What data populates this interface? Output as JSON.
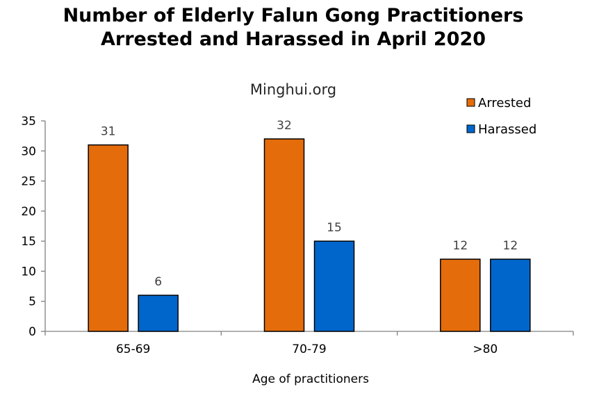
{
  "chart_data": {
    "type": "bar",
    "title_lines": [
      "Number of Elderly Falun Gong Practitioners",
      "Arrested and Harassed in April 2020"
    ],
    "subtitle": "Minghui.org",
    "xlabel": "Age of practitioners",
    "ylabel": "",
    "categories": [
      "65-69",
      "70-79",
      ">80"
    ],
    "series": [
      {
        "name": "Arrested",
        "values": [
          31,
          32,
          12
        ],
        "color": "#E46C0A"
      },
      {
        "name": "Harassed",
        "values": [
          6,
          15,
          12
        ],
        "color": "#0066CC"
      }
    ],
    "ylim": [
      0,
      35
    ],
    "yticks": [
      0,
      5,
      10,
      15,
      20,
      25,
      30,
      35
    ],
    "grid": false,
    "legend_position": "top-right",
    "data_labels": true
  }
}
